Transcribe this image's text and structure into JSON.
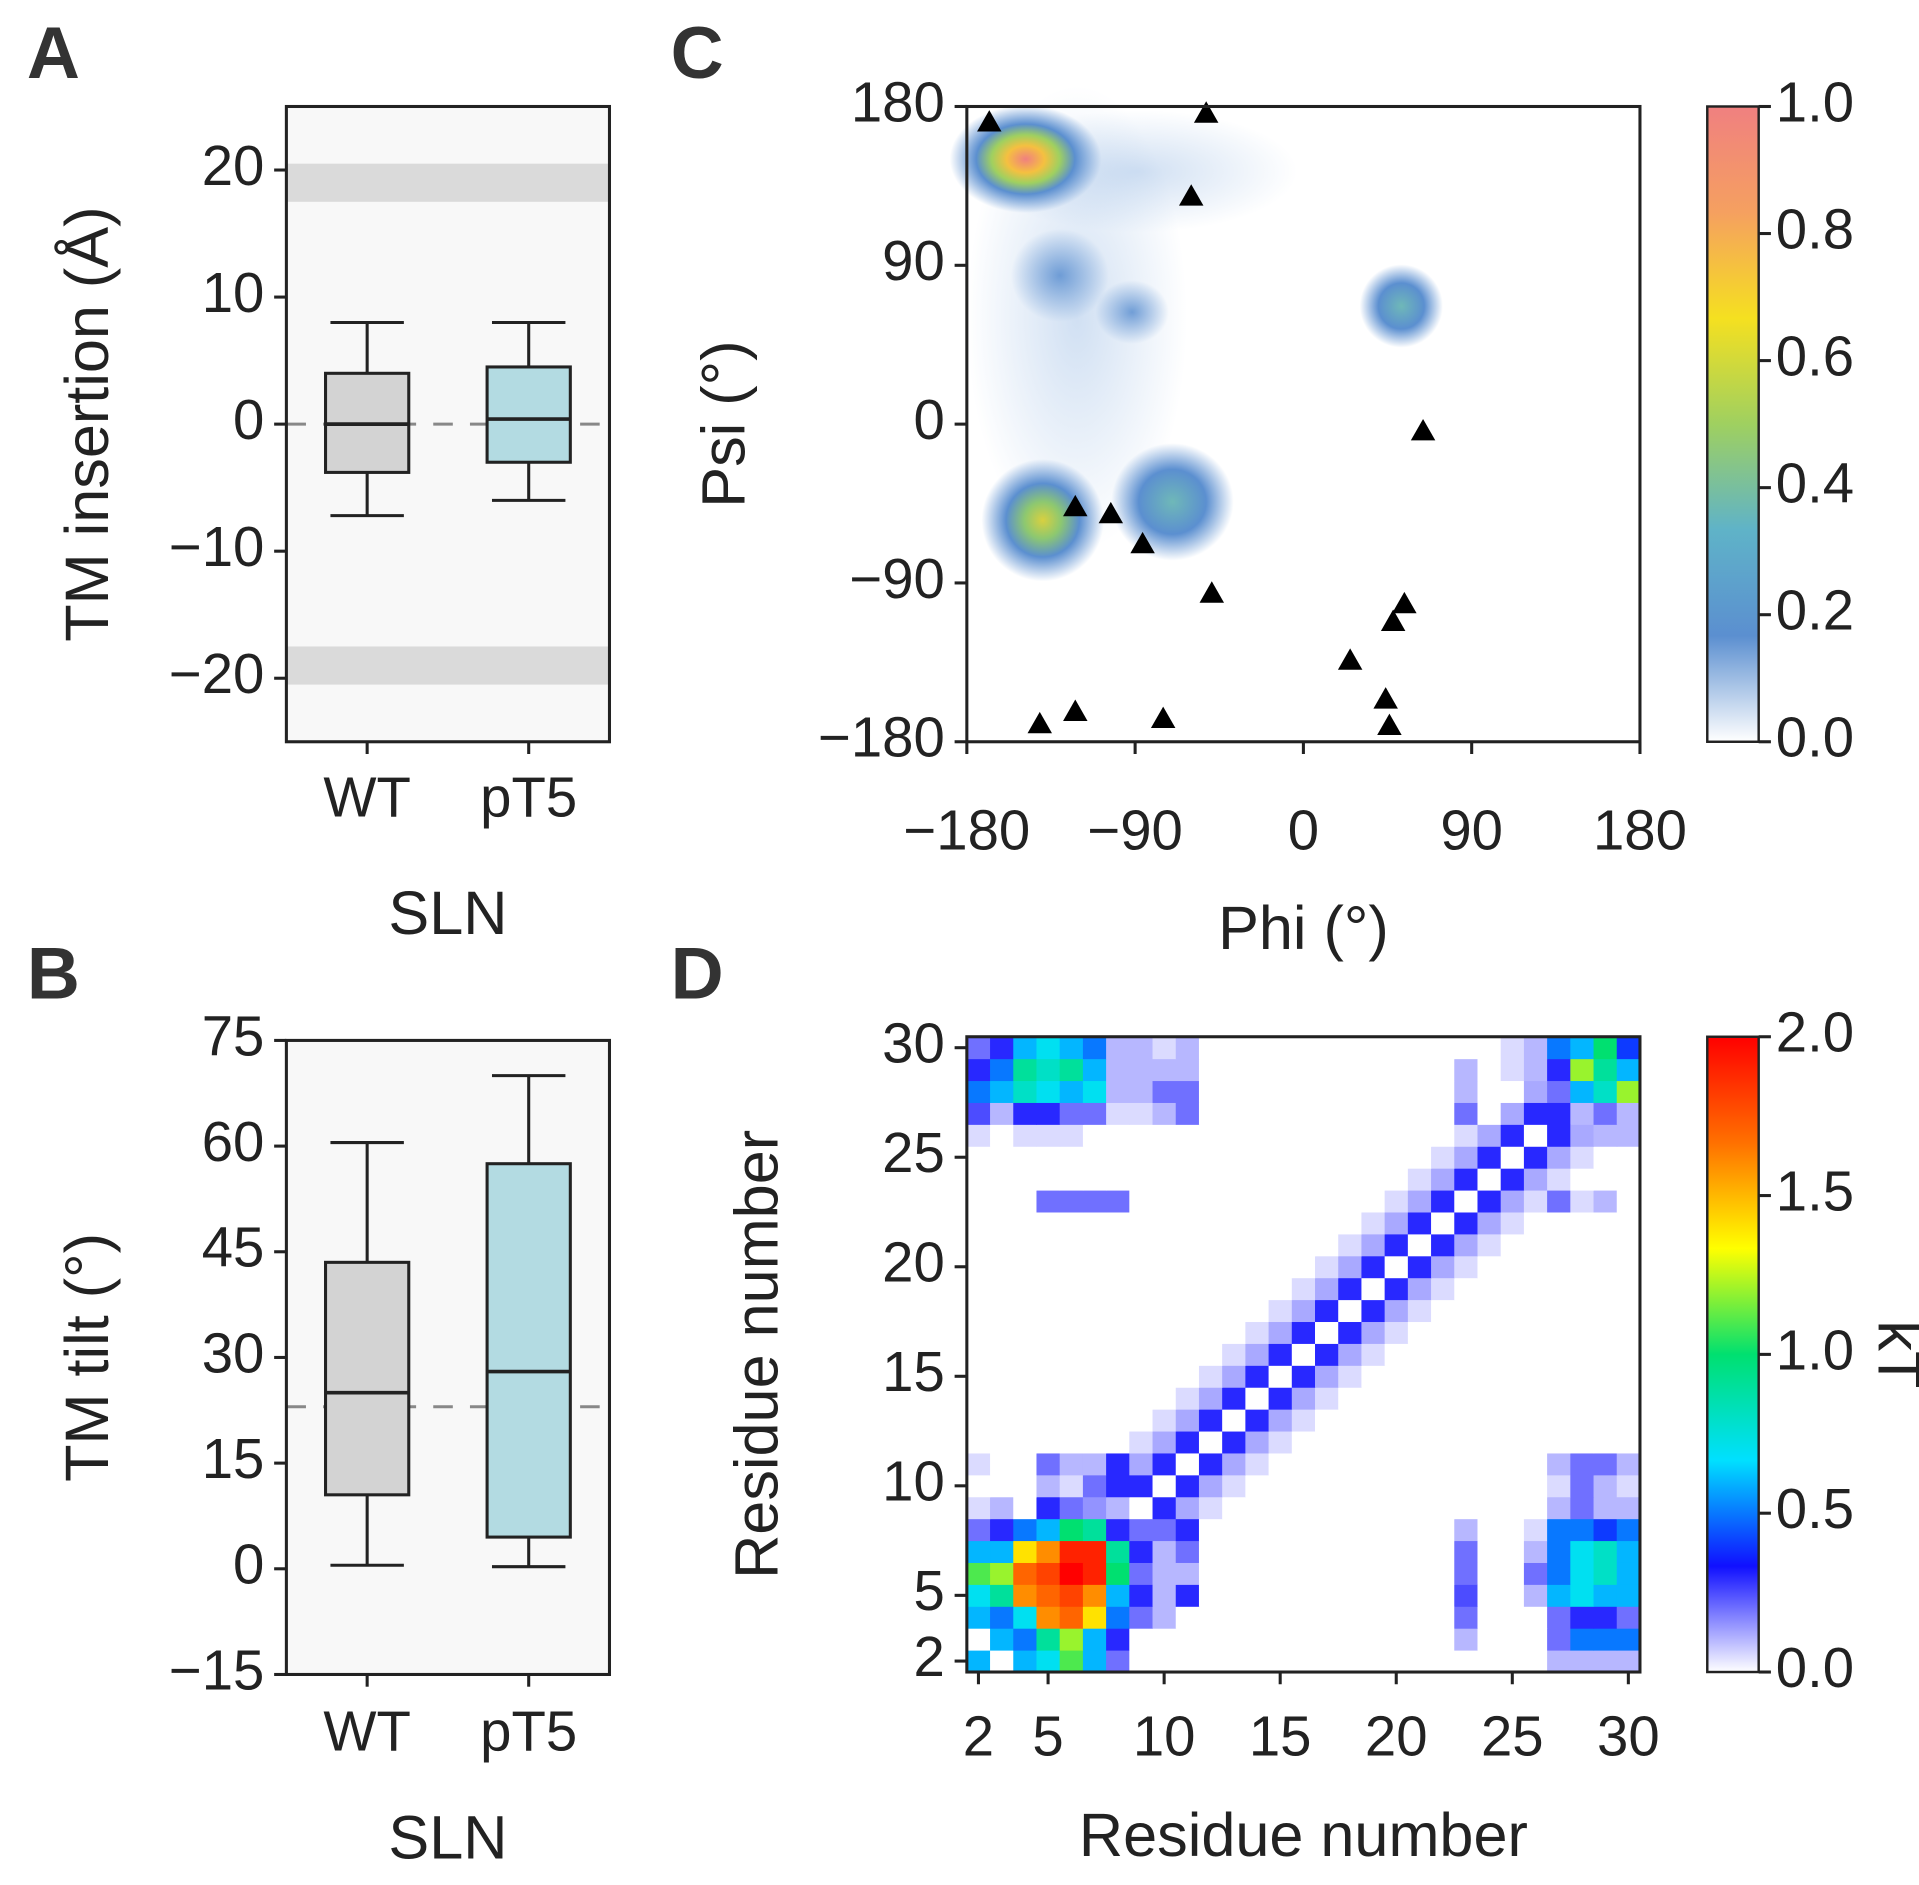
{
  "chart_data": [
    {
      "type": "box",
      "panel_label": "A",
      "ylabel": "TM insertion (Å)",
      "xlabel": "SLN",
      "categories": [
        "WT",
        "pT5"
      ],
      "colors": [
        "#d3d3d3",
        "#b3dbe2"
      ],
      "boxes": [
        {
          "min": -7.2,
          "q1": -3.8,
          "median": 0,
          "q3": 4,
          "max": 8
        },
        {
          "min": -6,
          "q1": -3,
          "median": 0.4,
          "q3": 4.5,
          "max": 8
        }
      ],
      "reference_line": 0,
      "shaded_ranges": [
        [
          17.5,
          20.5
        ],
        [
          -20.5,
          -17.5
        ]
      ],
      "ylim": [
        -25,
        25
      ],
      "yticks": [
        {
          "value": -20,
          "label": "−20"
        },
        {
          "value": -10,
          "label": "−10"
        },
        0,
        10,
        20
      ]
    },
    {
      "type": "box",
      "panel_label": "B",
      "ylabel": "TM tilt (°)",
      "xlabel": "SLN",
      "categories": [
        "WT",
        "pT5"
      ],
      "colors": [
        "#d3d3d3",
        "#b3dbe2"
      ],
      "boxes": [
        {
          "min": 0.5,
          "q1": 10.5,
          "median": 25,
          "q3": 43.5,
          "max": 60.5
        },
        {
          "min": 0.3,
          "q1": 4.5,
          "median": 28,
          "q3": 57.5,
          "max": 70
        }
      ],
      "reference_line": 23,
      "ylim": [
        -15,
        75
      ],
      "yticks": [
        {
          "value": -15,
          "label": "−15"
        },
        0,
        15,
        30,
        45,
        60,
        75
      ]
    },
    {
      "type": "scatter",
      "panel_label": "C",
      "xlabel": "Phi (°)",
      "ylabel": "Psi (°)",
      "marker": "triangle",
      "color": "#000000",
      "x": [
        -168,
        -52,
        -60,
        64,
        -122,
        -103,
        -86,
        -49,
        54,
        48,
        25,
        44,
        46,
        -141,
        -122,
        -75
      ],
      "y": [
        171,
        176,
        129,
        -4,
        -47,
        -51,
        -68,
        -96,
        -102,
        -112,
        -134,
        -156,
        -171,
        -170,
        -163,
        -167
      ],
      "xlim": [
        -180,
        180
      ],
      "ylim": [
        -180,
        180
      ],
      "xticks": [
        {
          "value": -180,
          "label": "−180"
        },
        {
          "value": -90,
          "label": "−90"
        },
        0,
        90,
        180
      ],
      "yticks": [
        {
          "value": -180,
          "label": "−180"
        },
        {
          "value": -90,
          "label": "−90"
        },
        0,
        90,
        180
      ],
      "colorbar": {
        "clim": [
          0,
          1
        ],
        "colormap": [
          "#ffffff",
          "#5b8fd0",
          "#5fb3c8",
          "#9fd060",
          "#f5e020",
          "#f5a060",
          "#f08080"
        ],
        "ticks": [
          {
            "value": 0,
            "label": "0.0"
          },
          0.2,
          0.4,
          0.6,
          0.8,
          {
            "value": 1,
            "label": "1.0"
          }
        ]
      }
    },
    {
      "type": "heatmap",
      "panel_label": "D",
      "xlabel": "Residue number",
      "ylabel": "Residue number",
      "x": [
        2,
        3,
        4,
        5,
        6,
        7,
        8,
        9,
        10,
        11,
        12,
        13,
        14,
        15,
        16,
        17,
        18,
        19,
        20,
        21,
        22,
        23,
        24,
        25,
        26,
        27,
        28,
        29,
        30
      ],
      "y": [
        2,
        3,
        4,
        5,
        6,
        7,
        8,
        9,
        10,
        11,
        12,
        13,
        14,
        15,
        16,
        17,
        18,
        19,
        20,
        21,
        22,
        23,
        24,
        25,
        26,
        27,
        28,
        29,
        30
      ],
      "z": [
        [
          0.6,
          0,
          0.6,
          0.7,
          1.1,
          0.6,
          0.2,
          0,
          0,
          0,
          0,
          0,
          0,
          0,
          0,
          0,
          0,
          0,
          0,
          0,
          0,
          0,
          0,
          0,
          0,
          0.1,
          0.1,
          0.1,
          0.1
        ],
        [
          0,
          0.6,
          0.5,
          0.9,
          1.2,
          0.6,
          0.3,
          0,
          0,
          0,
          0,
          0,
          0,
          0,
          0,
          0,
          0,
          0,
          0,
          0,
          0,
          0.1,
          0,
          0,
          0,
          0.2,
          0.5,
          0.5,
          0.5
        ],
        [
          0.6,
          0.5,
          0.7,
          1.6,
          1.7,
          1.4,
          0.5,
          0.2,
          0.1,
          0,
          0,
          0,
          0,
          0,
          0,
          0,
          0,
          0,
          0,
          0,
          0,
          0.2,
          0,
          0,
          0,
          0.2,
          0.3,
          0.3,
          0.2
        ],
        [
          0.7,
          0.9,
          1.6,
          1.7,
          1.8,
          1.6,
          0.6,
          0.3,
          0.1,
          0.3,
          0,
          0,
          0,
          0,
          0,
          0,
          0,
          0,
          0,
          0,
          0,
          0.25,
          0,
          0,
          0.1,
          0.6,
          0.7,
          0.6,
          0.6
        ],
        [
          1.1,
          1.2,
          1.7,
          1.8,
          2,
          1.9,
          1,
          0.2,
          0.1,
          0.1,
          0,
          0,
          0,
          0,
          0,
          0,
          0,
          0,
          0,
          0,
          0,
          0.2,
          0,
          0,
          0.2,
          0.5,
          0.7,
          0.8,
          0.6
        ],
        [
          0.6,
          0.6,
          1.4,
          1.6,
          1.9,
          1.9,
          0.9,
          0.3,
          0.1,
          0.2,
          0,
          0,
          0,
          0,
          0,
          0,
          0,
          0,
          0,
          0,
          0,
          0.2,
          0,
          0,
          0.1,
          0.5,
          0.7,
          0.8,
          0.6
        ],
        [
          0.2,
          0.3,
          0.5,
          0.6,
          1,
          0.9,
          0.3,
          0.2,
          0.2,
          0.3,
          0,
          0,
          0,
          0,
          0,
          0,
          0,
          0,
          0,
          0,
          0,
          0.1,
          0,
          0,
          0.05,
          0.5,
          0.5,
          0.4,
          0.5
        ],
        [
          0.05,
          0.1,
          0,
          0.3,
          0.2,
          0.15,
          0.1,
          0,
          0.3,
          0.12,
          0.05,
          0,
          0,
          0,
          0,
          0,
          0,
          0,
          0,
          0,
          0,
          0,
          0,
          0,
          0,
          0.1,
          0.2,
          0.1,
          0.1
        ],
        [
          0,
          0,
          0,
          0.1,
          0.05,
          0.2,
          0.3,
          0.3,
          0,
          0.3,
          0.12,
          0.05,
          0,
          0,
          0,
          0,
          0,
          0,
          0,
          0,
          0,
          0,
          0,
          0,
          0,
          0.05,
          0.2,
          0.1,
          0.05
        ],
        [
          0.05,
          0,
          0,
          0.2,
          0.1,
          0.1,
          0.3,
          0.12,
          0.3,
          0,
          0.3,
          0.12,
          0.05,
          0,
          0,
          0,
          0,
          0,
          0,
          0,
          0,
          0,
          0,
          0,
          0,
          0.1,
          0.2,
          0.2,
          0.1
        ],
        [
          0,
          0,
          0,
          0,
          0,
          0,
          0,
          0.05,
          0.12,
          0.3,
          0,
          0.3,
          0.12,
          0.05,
          0,
          0,
          0,
          0,
          0,
          0,
          0,
          0,
          0,
          0,
          0,
          0,
          0,
          0,
          0
        ],
        [
          0,
          0,
          0,
          0,
          0,
          0,
          0,
          0,
          0.05,
          0.12,
          0.3,
          0,
          0.3,
          0.12,
          0.05,
          0,
          0,
          0,
          0,
          0,
          0,
          0,
          0,
          0,
          0,
          0,
          0,
          0,
          0
        ],
        [
          0,
          0,
          0,
          0,
          0,
          0,
          0,
          0,
          0,
          0.05,
          0.12,
          0.3,
          0,
          0.3,
          0.12,
          0.05,
          0,
          0,
          0,
          0,
          0,
          0,
          0,
          0,
          0,
          0,
          0,
          0,
          0
        ],
        [
          0,
          0,
          0,
          0,
          0,
          0,
          0,
          0,
          0,
          0,
          0.05,
          0.12,
          0.3,
          0,
          0.3,
          0.12,
          0.05,
          0,
          0,
          0,
          0,
          0,
          0,
          0,
          0,
          0,
          0,
          0,
          0
        ],
        [
          0,
          0,
          0,
          0,
          0,
          0,
          0,
          0,
          0,
          0,
          0,
          0.05,
          0.12,
          0.3,
          0,
          0.3,
          0.12,
          0.05,
          0,
          0,
          0,
          0,
          0,
          0,
          0,
          0,
          0,
          0,
          0
        ],
        [
          0,
          0,
          0,
          0,
          0,
          0,
          0,
          0,
          0,
          0,
          0,
          0,
          0.05,
          0.12,
          0.3,
          0,
          0.3,
          0.12,
          0.05,
          0,
          0,
          0,
          0,
          0,
          0,
          0,
          0,
          0,
          0
        ],
        [
          0,
          0,
          0,
          0,
          0,
          0,
          0,
          0,
          0,
          0,
          0,
          0,
          0,
          0.05,
          0.12,
          0.3,
          0,
          0.3,
          0.12,
          0.05,
          0,
          0,
          0,
          0,
          0,
          0,
          0,
          0,
          0
        ],
        [
          0,
          0,
          0,
          0,
          0,
          0,
          0,
          0,
          0,
          0,
          0,
          0,
          0,
          0,
          0.05,
          0.12,
          0.3,
          0,
          0.3,
          0.12,
          0.05,
          0,
          0,
          0,
          0,
          0,
          0,
          0,
          0
        ],
        [
          0,
          0,
          0,
          0,
          0,
          0,
          0,
          0,
          0,
          0,
          0,
          0,
          0,
          0,
          0,
          0.05,
          0.12,
          0.3,
          0,
          0.3,
          0.12,
          0.05,
          0,
          0,
          0,
          0,
          0,
          0,
          0
        ],
        [
          0,
          0,
          0,
          0,
          0,
          0,
          0,
          0,
          0,
          0,
          0,
          0,
          0,
          0,
          0,
          0,
          0.05,
          0.12,
          0.3,
          0,
          0.3,
          0.12,
          0.05,
          0,
          0,
          0,
          0,
          0,
          0
        ],
        [
          0,
          0,
          0,
          0,
          0,
          0,
          0,
          0,
          0,
          0,
          0,
          0,
          0,
          0,
          0,
          0,
          0,
          0.05,
          0.12,
          0.3,
          0,
          0.3,
          0.12,
          0.05,
          0,
          0,
          0,
          0,
          0
        ],
        [
          0,
          0,
          0,
          0.2,
          0.2,
          0.2,
          0.2,
          0,
          0,
          0,
          0,
          0,
          0,
          0,
          0,
          0,
          0,
          0,
          0.05,
          0.12,
          0.3,
          0,
          0.3,
          0.12,
          0.05,
          0.2,
          0.05,
          0.1,
          0
        ],
        [
          0,
          0,
          0,
          0,
          0,
          0,
          0,
          0,
          0,
          0,
          0,
          0,
          0,
          0,
          0,
          0,
          0,
          0,
          0,
          0.05,
          0.12,
          0.3,
          0,
          0.3,
          0.12,
          0.05,
          0,
          0,
          0
        ],
        [
          0,
          0,
          0,
          0,
          0,
          0,
          0,
          0,
          0,
          0,
          0,
          0,
          0,
          0,
          0,
          0,
          0,
          0,
          0,
          0,
          0.05,
          0.12,
          0.3,
          0,
          0.3,
          0.12,
          0.05,
          0,
          0
        ],
        [
          0.05,
          0,
          0.05,
          0.05,
          0.05,
          0,
          0,
          0,
          0,
          0,
          0,
          0,
          0,
          0,
          0,
          0,
          0,
          0,
          0,
          0,
          0,
          0.05,
          0.12,
          0.3,
          0,
          0.3,
          0.12,
          0.1,
          0.1
        ],
        [
          0.25,
          0.1,
          0.3,
          0.3,
          0.2,
          0.2,
          0.05,
          0.05,
          0.1,
          0.2,
          0,
          0,
          0,
          0,
          0,
          0,
          0,
          0,
          0,
          0,
          0,
          0.2,
          0,
          0.12,
          0.3,
          0.3,
          0.1,
          0.2,
          0.1
        ],
        [
          0.5,
          0.6,
          0.8,
          0.7,
          0.6,
          0.7,
          0.1,
          0.1,
          0.2,
          0.2,
          0,
          0,
          0,
          0,
          0,
          0,
          0,
          0,
          0,
          0,
          0,
          0.1,
          0,
          0,
          0.12,
          0.2,
          0.6,
          0.8,
          1.2
        ],
        [
          0.3,
          0.5,
          0.9,
          0.8,
          0.9,
          0.6,
          0.1,
          0.1,
          0.1,
          0.1,
          0,
          0,
          0,
          0,
          0,
          0,
          0,
          0,
          0,
          0,
          0,
          0.1,
          0,
          0.05,
          0.1,
          0.3,
          1.2,
          0.9,
          0.6
        ],
        [
          0.2,
          0.3,
          0.6,
          0.7,
          0.6,
          0.5,
          0.1,
          0.1,
          0.05,
          0.1,
          0,
          0,
          0,
          0,
          0,
          0,
          0,
          0,
          0,
          0,
          0,
          0,
          0,
          0.05,
          0.1,
          0.5,
          0.6,
          1,
          0.4
        ]
      ],
      "xticks": [
        2,
        5,
        10,
        15,
        20,
        25,
        30
      ],
      "yticks": [
        2,
        5,
        10,
        15,
        20,
        25,
        30
      ],
      "colorbar": {
        "clim": [
          0,
          2
        ],
        "label": "kT",
        "colormap": [
          "#ffffff",
          "#1010ff",
          "#00e0ff",
          "#00e070",
          "#ffff00",
          "#ff7000",
          "#ff0000"
        ],
        "ticks": [
          {
            "value": 0,
            "label": "0.0"
          },
          0.5,
          {
            "value": 1,
            "label": "1.0"
          },
          1.5,
          {
            "value": 2,
            "label": "2.0"
          }
        ]
      }
    }
  ]
}
